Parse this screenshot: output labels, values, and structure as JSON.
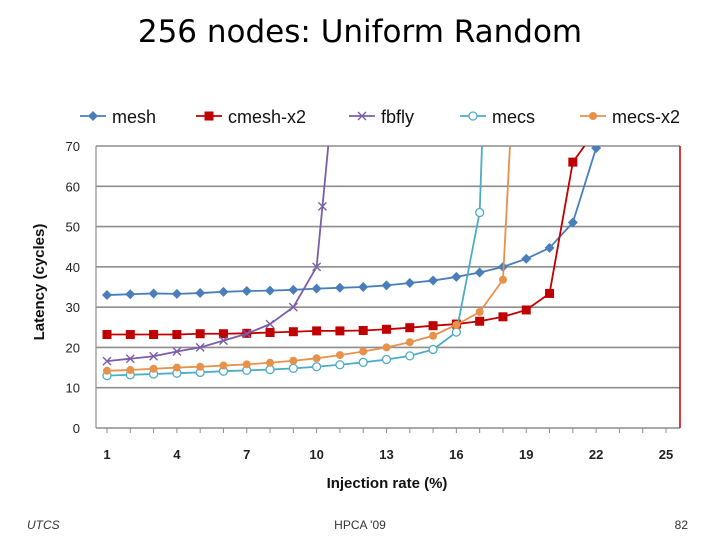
{
  "slide": {
    "title": "256 nodes: Uniform Random",
    "footer_left": "UTCS",
    "footer_center": "HPCA '09",
    "footer_right": "82"
  },
  "chart_data": {
    "type": "line",
    "title": "",
    "xlabel": "Injection rate (%)",
    "ylabel": "Latency (cycles)",
    "xlim": [
      1,
      25
    ],
    "ylim": [
      0,
      70
    ],
    "xticks": [
      1,
      4,
      7,
      10,
      13,
      16,
      19,
      22,
      25
    ],
    "yticks": [
      0,
      10,
      20,
      30,
      40,
      50,
      60,
      70
    ],
    "grid": "horizontal",
    "legend_position": "top",
    "series": [
      {
        "name": "mesh",
        "color": "#4a7ebb",
        "marker": "diamond",
        "x": [
          1,
          2,
          3,
          4,
          5,
          6,
          7,
          8,
          9,
          10,
          11,
          12,
          13,
          14,
          15,
          16,
          17,
          18,
          19,
          20,
          21,
          22
        ],
        "y": [
          33,
          33.2,
          33.4,
          33.3,
          33.5,
          33.8,
          34,
          34.1,
          34.3,
          34.6,
          34.8,
          35,
          35.4,
          36,
          36.6,
          37.5,
          38.6,
          40,
          42,
          44.7,
          51,
          69.5
        ]
      },
      {
        "name": "cmesh-x2",
        "color": "#c00000",
        "marker": "square",
        "x": [
          1,
          2,
          3,
          4,
          5,
          6,
          7,
          8,
          9,
          10,
          11,
          12,
          13,
          14,
          15,
          16,
          17,
          18,
          19,
          20,
          21,
          21.5
        ],
        "y": [
          23.2,
          23.2,
          23.2,
          23.2,
          23.4,
          23.4,
          23.5,
          23.7,
          23.9,
          24.1,
          24.1,
          24.2,
          24.5,
          24.9,
          25.4,
          25.8,
          26.5,
          27.6,
          29.3,
          33.4,
          66,
          70
        ]
      },
      {
        "name": "fbfly",
        "color": "#7a5ea8",
        "marker": "x",
        "x": [
          1,
          2,
          3,
          4,
          5,
          6,
          7,
          8,
          9,
          10,
          10.25,
          10.5
        ],
        "y": [
          16.6,
          17.2,
          17.8,
          19,
          20,
          21.7,
          23.4,
          25.8,
          30,
          40,
          55,
          70
        ]
      },
      {
        "name": "mecs",
        "color": "#4bacc6",
        "marker": "circle-open",
        "x": [
          1,
          2,
          3,
          4,
          5,
          6,
          7,
          8,
          9,
          10,
          11,
          12,
          13,
          14,
          15,
          16,
          17,
          17.1
        ],
        "y": [
          13,
          13.2,
          13.4,
          13.6,
          13.8,
          14.1,
          14.3,
          14.5,
          14.8,
          15.2,
          15.7,
          16.3,
          17,
          17.9,
          19.5,
          23.8,
          53.5,
          70
        ]
      },
      {
        "name": "mecs-x2",
        "color": "#e8914b",
        "marker": "circle",
        "x": [
          1,
          2,
          3,
          4,
          5,
          6,
          7,
          8,
          9,
          10,
          11,
          12,
          13,
          14,
          15,
          16,
          17,
          18,
          18.3
        ],
        "y": [
          14.2,
          14.4,
          14.7,
          15,
          15.2,
          15.5,
          15.8,
          16.2,
          16.7,
          17.3,
          18.1,
          19,
          20,
          21.3,
          22.9,
          25.6,
          28.8,
          36.8,
          70
        ]
      }
    ]
  }
}
